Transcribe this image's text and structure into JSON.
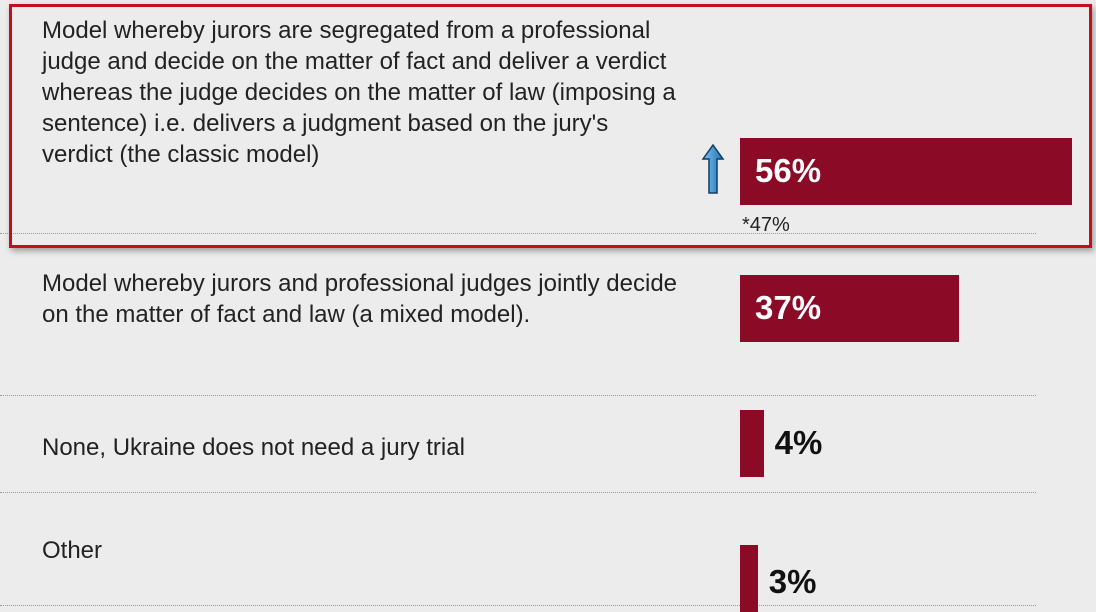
{
  "chart_data": {
    "type": "bar",
    "orientation": "horizontal",
    "categories": [
      "Model whereby jurors are segregated from a professional judge and decide on the matter of fact and deliver a verdict whereas the judge decides on the matter of law (imposing a sentence) i.e. delivers a judgment based on the jury's verdict (the classic model)",
      "Model whereby jurors and professional judges jointly decide on the matter of fact and law (a mixed model).",
      "None, Ukraine does not need a jury trial",
      "Other"
    ],
    "values": [
      56,
      37,
      4,
      3
    ],
    "value_labels": [
      "56%",
      "37%",
      "4%",
      "3%"
    ],
    "color": "#8b0a25",
    "annotation": "*47%"
  }
}
